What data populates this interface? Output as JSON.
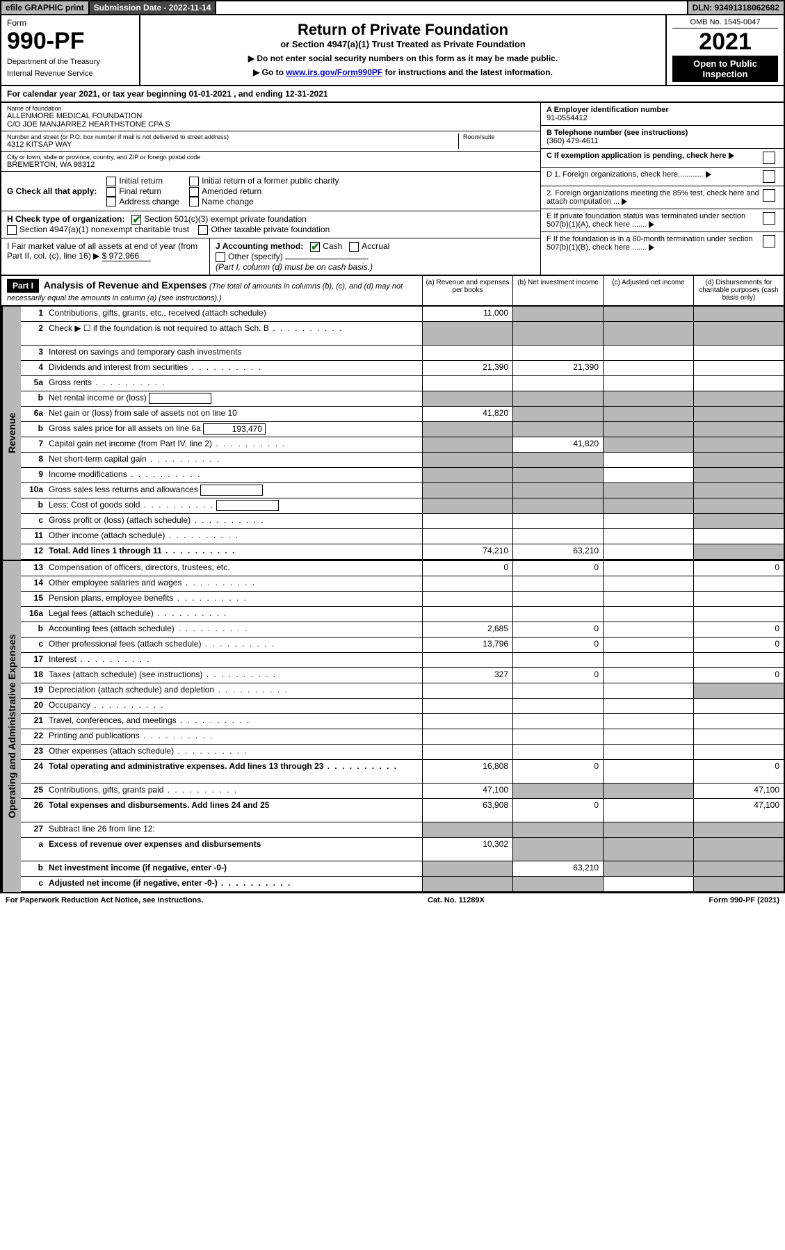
{
  "topbar": {
    "efile": "efile GRAPHIC print",
    "subdate": "Submission Date - 2022-11-14",
    "dln": "DLN: 93491318062682"
  },
  "header": {
    "form_word": "Form",
    "form_no": "990-PF",
    "dept": "Department of the Treasury",
    "irs": "Internal Revenue Service",
    "title": "Return of Private Foundation",
    "subtitle": "or Section 4947(a)(1) Trust Treated as Private Foundation",
    "note1": "▶ Do not enter social security numbers on this form as it may be made public.",
    "note2_pre": "▶ Go to ",
    "note2_link": "www.irs.gov/Form990PF",
    "note2_post": " for instructions and the latest information.",
    "omb": "OMB No. 1545-0047",
    "year": "2021",
    "open_public": "Open to Public Inspection"
  },
  "cal": {
    "text_pre": "For calendar year 2021, or tax year beginning ",
    "begin": "01-01-2021",
    "text_mid": " , and ending ",
    "end": "12-31-2021"
  },
  "id": {
    "name_label": "Name of foundation",
    "name1": "ALLENMORE MEDICAL FOUNDATION",
    "name2": "C/O JOE MANJARREZ HEARTHSTONE CPA S",
    "addr_label": "Number and street (or P.O. box number if mail is not delivered to street address)",
    "addr": "4312 KITSAP WAY",
    "room_label": "Room/suite",
    "room": "",
    "city_label": "City or town, state or province, country, and ZIP or foreign postal code",
    "city": "BREMERTON, WA  98312",
    "ein_label": "A Employer identification number",
    "ein": "91-0554412",
    "tel_label": "B Telephone number (see instructions)",
    "tel": "(360) 479-4611",
    "c_label": "C If exemption application is pending, check here",
    "d1": "D 1. Foreign organizations, check here............",
    "d2": "2. Foreign organizations meeting the 85% test, check here and attach computation ...",
    "e": "E  If private foundation status was terminated under section 507(b)(1)(A), check here .......",
    "f": "F  If the foundation is in a 60-month termination under section 507(b)(1)(B), check here .......",
    "g_label": "G Check all that apply:",
    "g_options": [
      "Initial return",
      "Final return",
      "Address change",
      "Initial return of a former public charity",
      "Amended return",
      "Name change"
    ],
    "h_label": "H Check type of organization:",
    "h_opt1": "Section 501(c)(3) exempt private foundation",
    "h_opt2": "Section 4947(a)(1) nonexempt charitable trust",
    "h_opt3": "Other taxable private foundation",
    "i_label": "I Fair market value of all assets at end of year (from Part II, col. (c), line 16) ▶",
    "i_val": "$  972,966",
    "j_label": "J Accounting method:",
    "j_cash": "Cash",
    "j_accrual": "Accrual",
    "j_other": "Other (specify)",
    "j_note": "(Part I, column (d) must be on cash basis.)"
  },
  "part1": {
    "strip": "Part I",
    "title": "Analysis of Revenue and Expenses",
    "title_note": " (The total of amounts in columns (b), (c), and (d) may not necessarily equal the amounts in column (a) (see instructions).)",
    "col_a": "(a)   Revenue and expenses per books",
    "col_b": "(b)   Net investment income",
    "col_c": "(c)   Adjusted net income",
    "col_d": "(d)  Disbursements for charitable purposes (cash basis only)"
  },
  "side": {
    "revenue": "Revenue",
    "expenses": "Operating and Administrative Expenses"
  },
  "rows": [
    {
      "n": "1",
      "d": "Contributions, gifts, grants, etc., received (attach schedule)",
      "a": "11,000",
      "greyBCD": true
    },
    {
      "n": "2",
      "d": "Check ▶ ☐ if the foundation is not required to attach Sch. B",
      "dots": true,
      "greyAll": true,
      "tall": true
    },
    {
      "n": "3",
      "d": "Interest on savings and temporary cash investments"
    },
    {
      "n": "4",
      "d": "Dividends and interest from securities",
      "dots": true,
      "a": "21,390",
      "b": "21,390"
    },
    {
      "n": "5a",
      "d": "Gross rents",
      "dots": true
    },
    {
      "n": "b",
      "d": "Net rental income or (loss)",
      "inset": "",
      "greyAll": true
    },
    {
      "n": "6a",
      "d": "Net gain or (loss) from sale of assets not on line 10",
      "a": "41,820",
      "greyBCD": true
    },
    {
      "n": "b",
      "d": "Gross sales price for all assets on line 6a",
      "inset": "193,470",
      "greyAll": true
    },
    {
      "n": "7",
      "d": "Capital gain net income (from Part IV, line 2)",
      "dots": true,
      "b": "41,820",
      "greyA": true,
      "greyCD": true
    },
    {
      "n": "8",
      "d": "Net short-term capital gain",
      "dots": true,
      "greyAB": true,
      "greyD": true
    },
    {
      "n": "9",
      "d": "Income modifications",
      "dots": true,
      "greyAB": true,
      "greyD": true
    },
    {
      "n": "10a",
      "d": "Gross sales less returns and allowances",
      "inset": "",
      "greyAll": true
    },
    {
      "n": "b",
      "d": "Less: Cost of goods sold",
      "dots": true,
      "inset": "",
      "greyAll": true
    },
    {
      "n": "c",
      "d": "Gross profit or (loss) (attach schedule)",
      "dots": true,
      "greyD": true
    },
    {
      "n": "11",
      "d": "Other income (attach schedule)",
      "dots": true
    },
    {
      "n": "12",
      "d": "Total. Add lines 1 through 11",
      "dots": true,
      "bold": true,
      "a": "74,210",
      "b": "63,210",
      "greyD": true
    }
  ],
  "exp_rows": [
    {
      "n": "13",
      "d": "Compensation of officers, directors, trustees, etc.",
      "a": "0",
      "b": "0",
      "d4": "0"
    },
    {
      "n": "14",
      "d": "Other employee salaries and wages",
      "dots": true
    },
    {
      "n": "15",
      "d": "Pension plans, employee benefits",
      "dots": true
    },
    {
      "n": "16a",
      "d": "Legal fees (attach schedule)",
      "dots": true
    },
    {
      "n": "b",
      "d": "Accounting fees (attach schedule)",
      "dots": true,
      "a": "2,685",
      "b": "0",
      "d4": "0"
    },
    {
      "n": "c",
      "d": "Other professional fees (attach schedule)",
      "dots": true,
      "a": "13,796",
      "b": "0",
      "d4": "0"
    },
    {
      "n": "17",
      "d": "Interest",
      "dots": true
    },
    {
      "n": "18",
      "d": "Taxes (attach schedule) (see instructions)",
      "dots": true,
      "a": "327",
      "b": "0",
      "d4": "0"
    },
    {
      "n": "19",
      "d": "Depreciation (attach schedule) and depletion",
      "dots": true,
      "greyD": true
    },
    {
      "n": "20",
      "d": "Occupancy",
      "dots": true
    },
    {
      "n": "21",
      "d": "Travel, conferences, and meetings",
      "dots": true
    },
    {
      "n": "22",
      "d": "Printing and publications",
      "dots": true
    },
    {
      "n": "23",
      "d": "Other expenses (attach schedule)",
      "dots": true
    },
    {
      "n": "24",
      "d": "Total operating and administrative expenses. Add lines 13 through 23",
      "dots": true,
      "bold": true,
      "a": "16,808",
      "b": "0",
      "d4": "0",
      "tall": true
    },
    {
      "n": "25",
      "d": "Contributions, gifts, grants paid",
      "dots": true,
      "a": "47,100",
      "greyBC": true,
      "d4": "47,100"
    },
    {
      "n": "26",
      "d": "Total expenses and disbursements. Add lines 24 and 25",
      "bold": true,
      "a": "63,908",
      "b": "0",
      "d4": "47,100",
      "tall": true
    },
    {
      "n": "27",
      "d": "Subtract line 26 from line 12:",
      "greyAll": true
    },
    {
      "n": "a",
      "d": "Excess of revenue over expenses and disbursements",
      "bold": true,
      "a": "10,302",
      "greyBCD": true,
      "tall": true
    },
    {
      "n": "b",
      "d": "Net investment income (if negative, enter -0-)",
      "bold": true,
      "b": "63,210",
      "greyA": true,
      "greyCD": true
    },
    {
      "n": "c",
      "d": "Adjusted net income (if negative, enter -0-)",
      "dots": true,
      "bold": true,
      "greyAB": true,
      "greyD": true
    }
  ],
  "footer": {
    "left": "For Paperwork Reduction Act Notice, see instructions.",
    "mid": "Cat. No. 11289X",
    "right": "Form 990-PF (2021)"
  },
  "colors": {
    "greybg": "#b8b8b8",
    "darkbar": "#474747",
    "link": "#0000cc",
    "check": "#1e7a1e"
  }
}
